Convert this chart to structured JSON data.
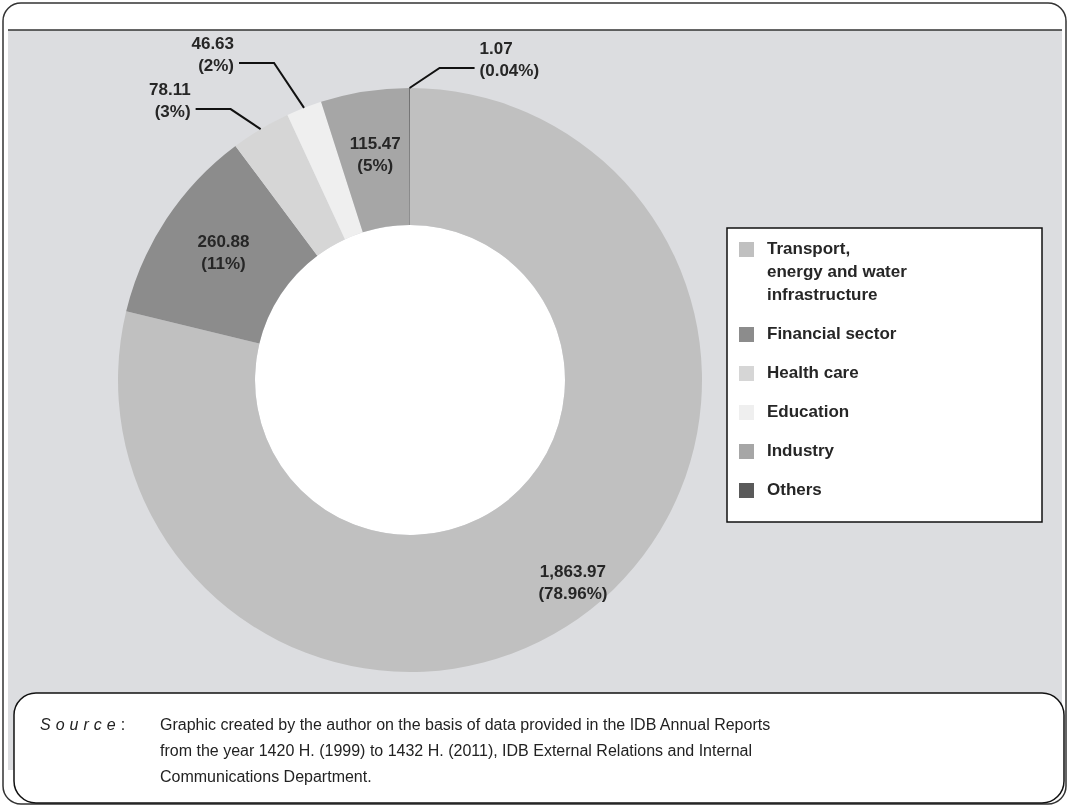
{
  "chart_data": {
    "type": "donut",
    "categories": [
      "Transport, energy and water infrastructure",
      "Financial sector",
      "Health care",
      "Education",
      "Industry",
      "Others"
    ],
    "values": [
      1863.97,
      260.88,
      78.11,
      46.63,
      115.47,
      1.07
    ],
    "value_labels": [
      "1,863.97 (78.96%)",
      "260.88 (11%)",
      "78.11 (3%)",
      "46.63 (2%)",
      "115.47 (5%)",
      "1.07 (0.04%)"
    ],
    "colors": [
      "#c0c0c0",
      "#8c8c8c",
      "#d6d6d6",
      "#efefef",
      "#a6a6a6",
      "#5a5a5a"
    ],
    "legend": "right",
    "annotations": [
      "Source: Graphic created by the author on the basis of data provided in the IDB Annual Reports from the year 1420 H. (1999) to 1432 H. (2011), IDB External Relations and Internal Communications Department."
    ]
  }
}
